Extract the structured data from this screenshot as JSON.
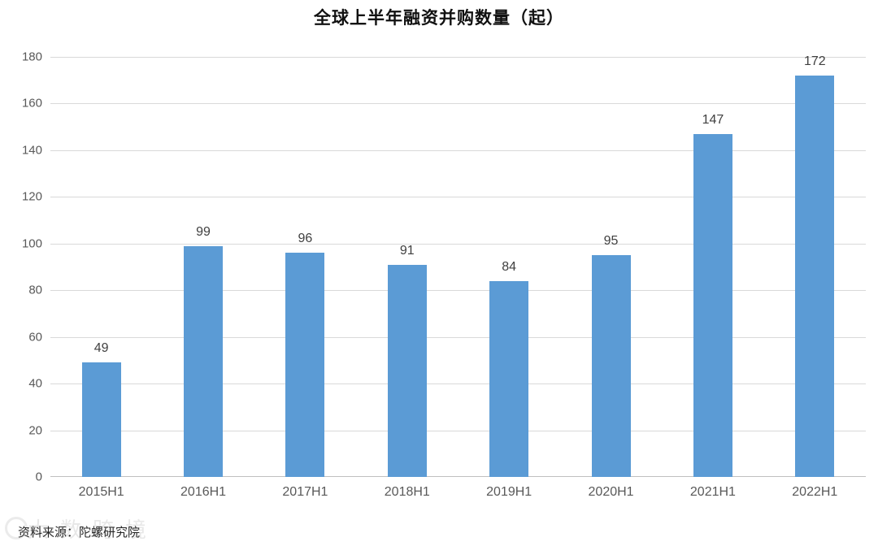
{
  "chart_data": {
    "type": "bar",
    "title": "全球上半年融资并购数量（起）",
    "categories": [
      "2015H1",
      "2016H1",
      "2017H1",
      "2018H1",
      "2019H1",
      "2020H1",
      "2021H1",
      "2022H1"
    ],
    "values": [
      49,
      99,
      96,
      91,
      84,
      95,
      147,
      172
    ],
    "xlabel": "",
    "ylabel": "",
    "ylim": [
      0,
      180
    ],
    "ytick_step": 20,
    "grid": true,
    "legend": "none",
    "bar_color": "#5B9BD5",
    "gridline_color": "#d9d9d9",
    "axis_line_color": "#bfbfbf",
    "tick_label_color": "#595959",
    "value_label_color": "#404040"
  },
  "footer": {
    "source": "资料来源：陀螺研究院",
    "watermark": "大数跨境"
  }
}
